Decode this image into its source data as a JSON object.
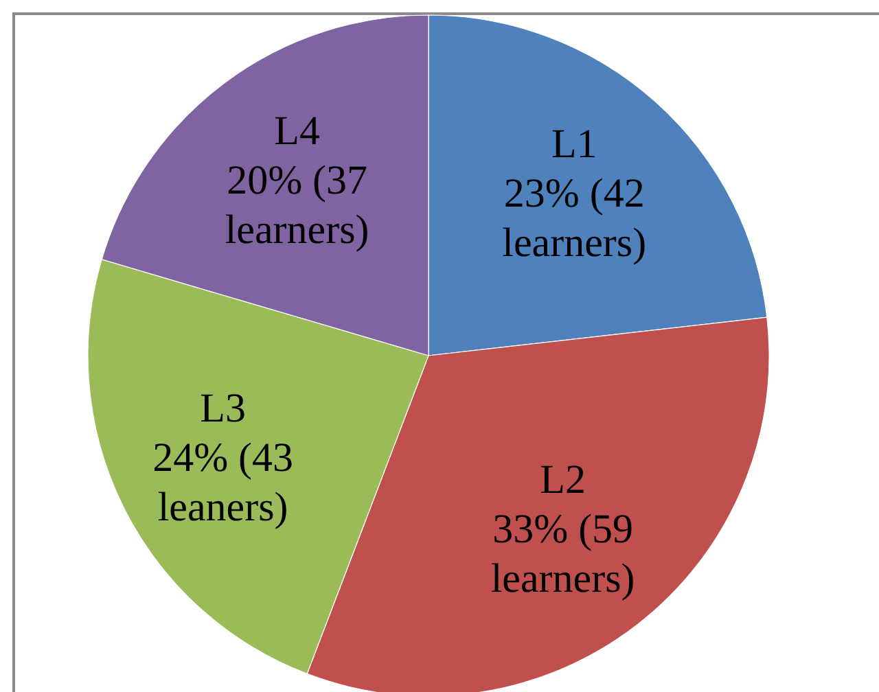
{
  "chart_data": {
    "type": "pie",
    "categories": [
      "L1",
      "L2",
      "L3",
      "L4"
    ],
    "values": [
      42,
      59,
      43,
      37
    ],
    "value_labels": [
      "23% (42 learners)",
      "33% (59 learners)",
      "24% (43 leaners)",
      "20% (37 learners)"
    ],
    "colors": [
      "#4f81bd",
      "#c0504d",
      "#9bbb59",
      "#8064a2"
    ]
  }
}
